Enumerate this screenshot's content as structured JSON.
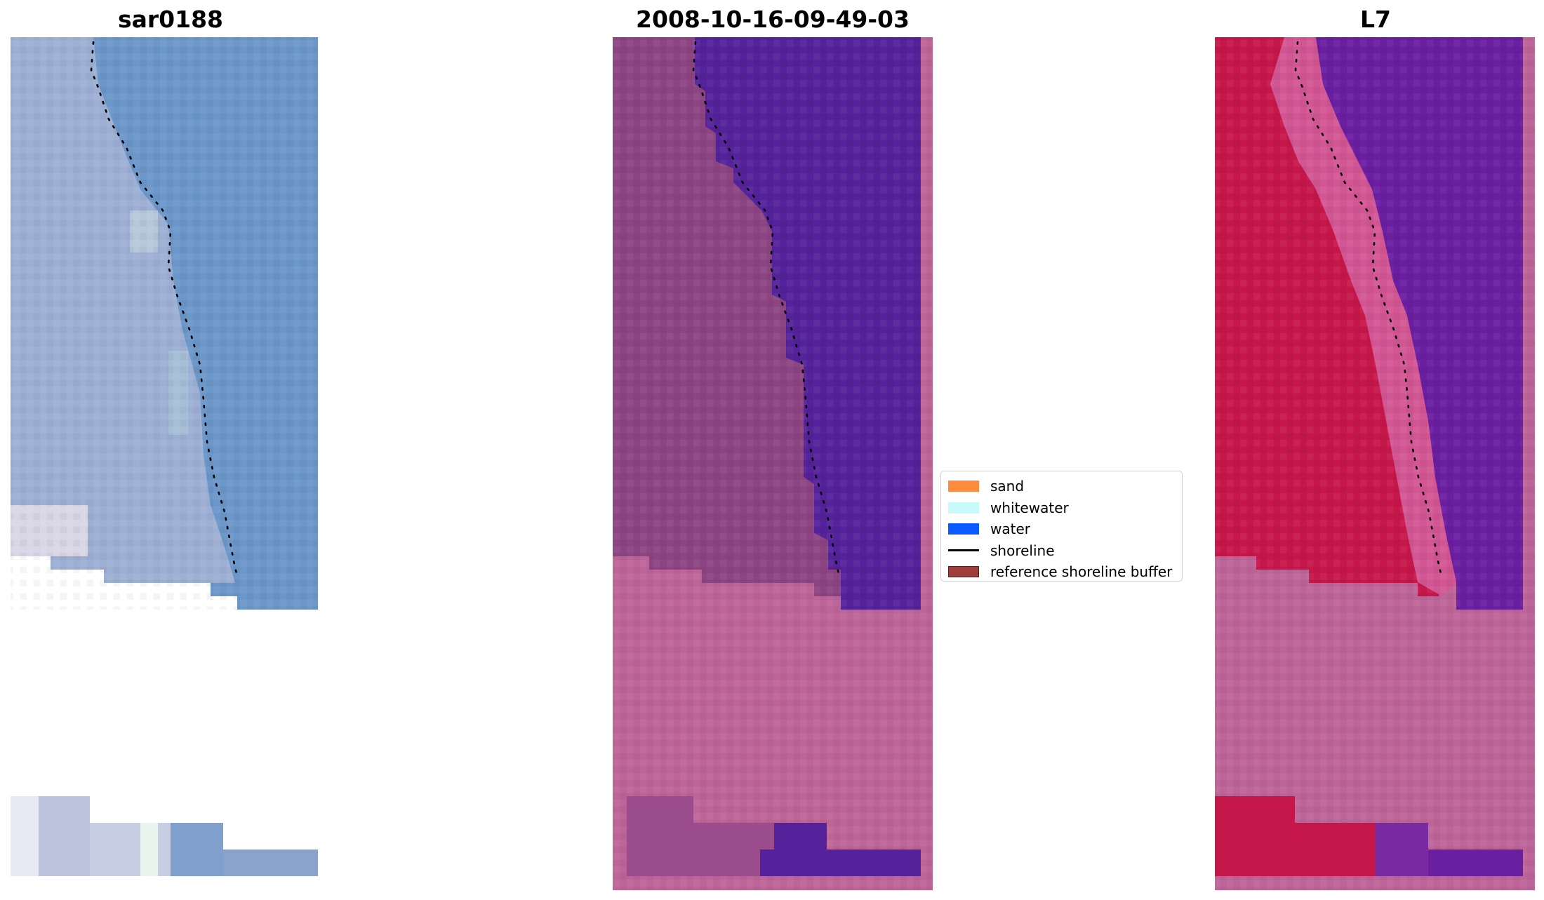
{
  "panels": {
    "rgb": {
      "title": "sar0188"
    },
    "classified": {
      "title": "2008-10-16-09-49-03"
    },
    "satellite": {
      "title": "L7"
    }
  },
  "legend": {
    "items": [
      {
        "label": "sand",
        "color": "#ff8c3c",
        "kind": "patch"
      },
      {
        "label": "whitewater",
        "color": "#c8fafa",
        "kind": "patch"
      },
      {
        "label": "water",
        "color": "#0a5aff",
        "kind": "patch"
      },
      {
        "label": "shoreline",
        "color": "#000000",
        "kind": "line"
      },
      {
        "label": "reference shoreline buffer",
        "color": "#a03c3c",
        "kind": "patch"
      }
    ]
  },
  "colors": {
    "rgb_water": "#6a96c8",
    "rgb_land": "#9fb2d2",
    "classified_land": "#8c4482",
    "classified_water": "#54229a",
    "classified_nodata": "#bd6598",
    "satellite_land": "#c6174a",
    "satellite_water": "#6a1ea0",
    "satellite_nodata": "#bd6598"
  }
}
